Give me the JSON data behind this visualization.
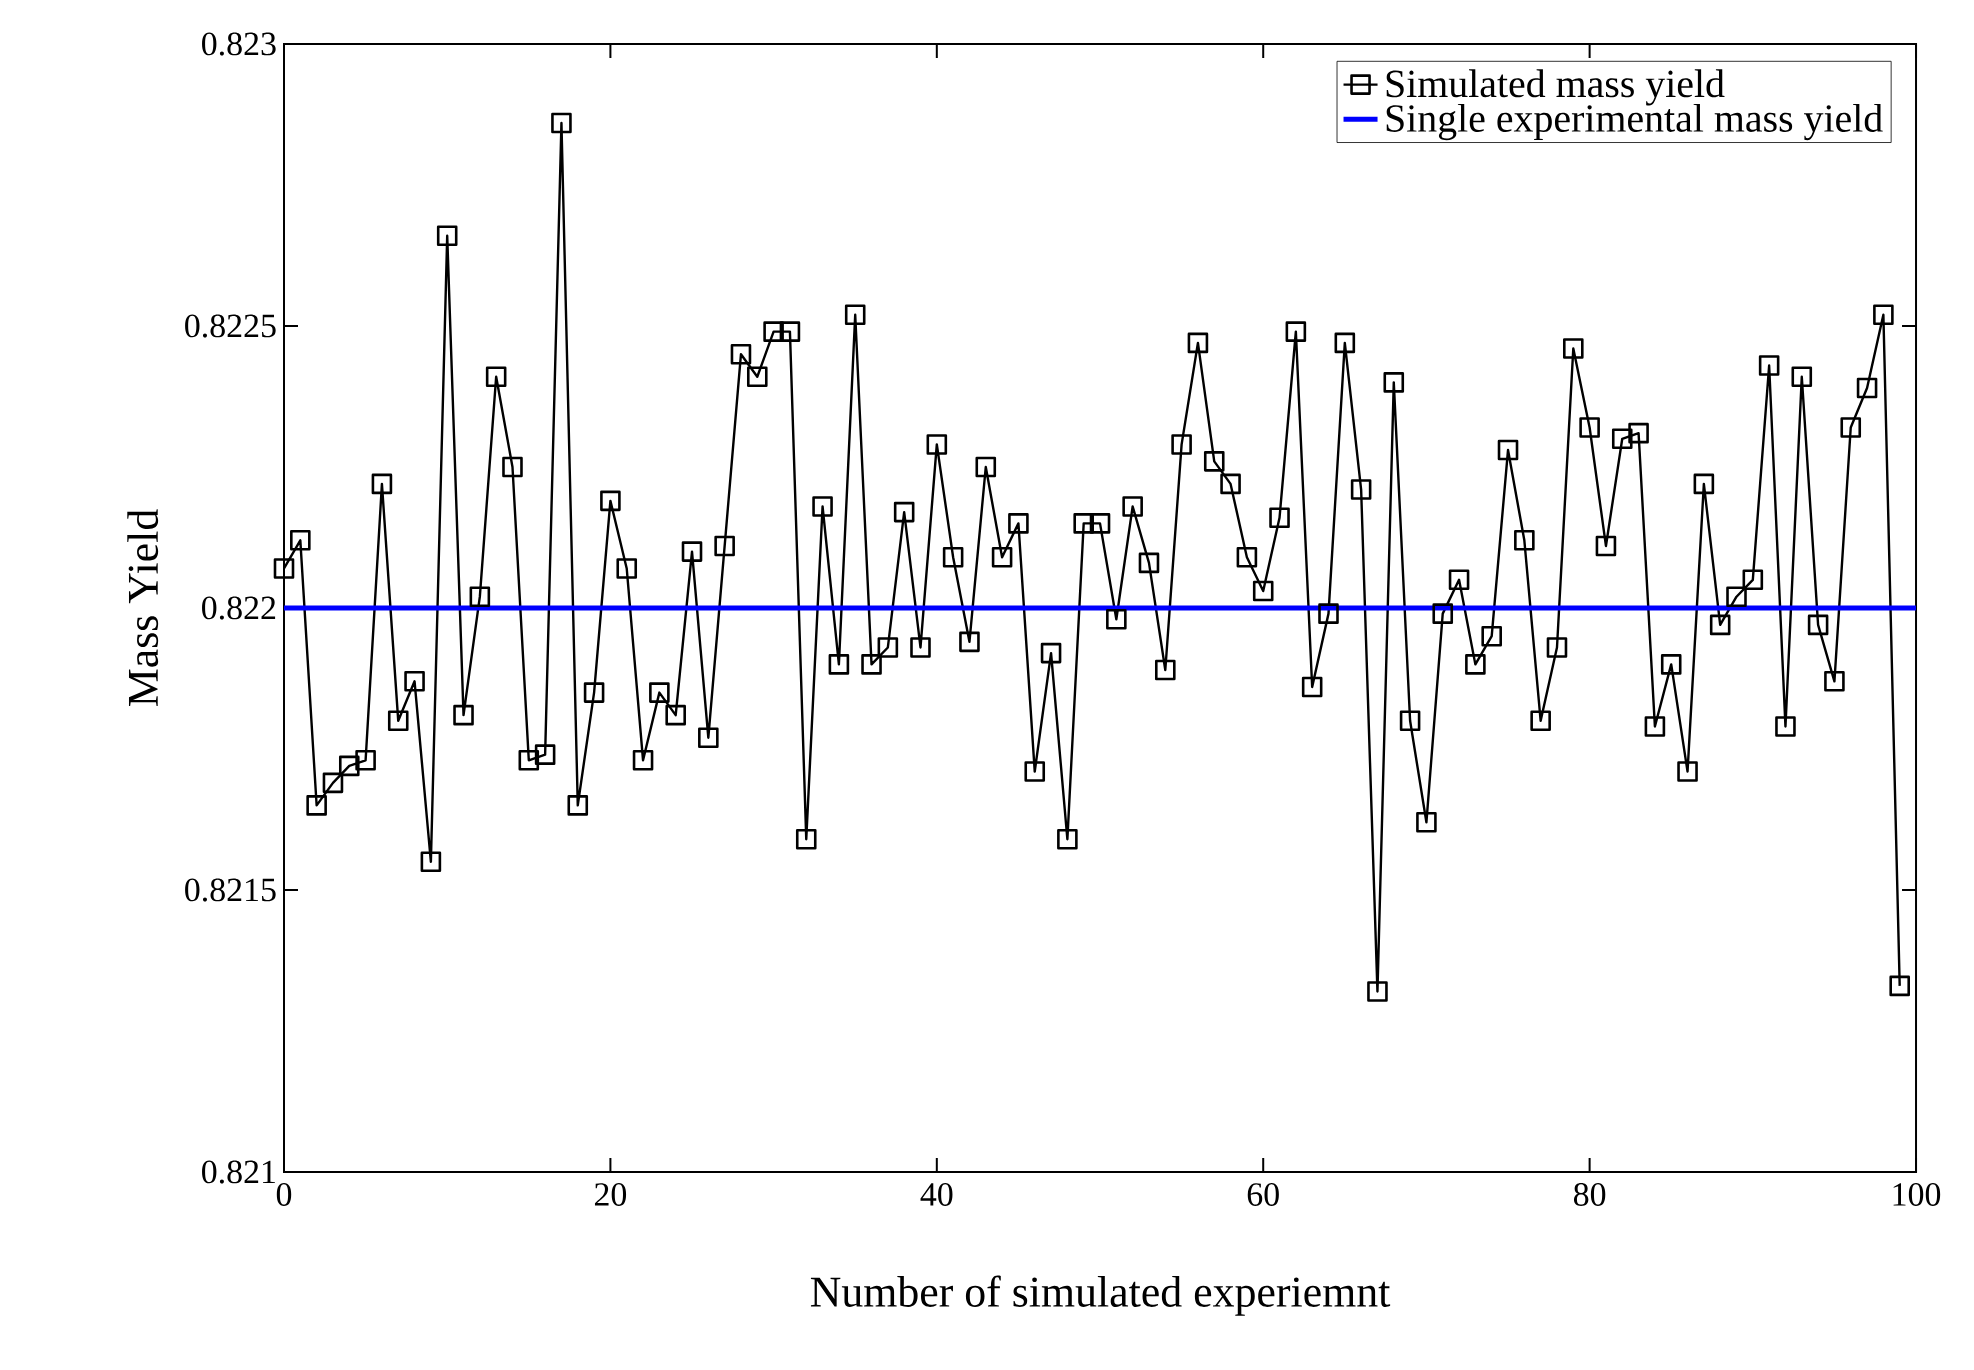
{
  "chart_data": {
    "type": "line",
    "xlabel": "Number of simulated experiemnt",
    "ylabel": "Mass Yield",
    "x": [
      0,
      1,
      2,
      3,
      4,
      5,
      6,
      7,
      8,
      9,
      10,
      11,
      12,
      13,
      14,
      15,
      16,
      17,
      18,
      19,
      20,
      21,
      22,
      23,
      24,
      25,
      26,
      27,
      28,
      29,
      30,
      31,
      32,
      33,
      34,
      35,
      36,
      37,
      38,
      39,
      40,
      41,
      42,
      43,
      44,
      45,
      46,
      47,
      48,
      49,
      50,
      51,
      52,
      53,
      54,
      55,
      56,
      57,
      58,
      59,
      60,
      61,
      62,
      63,
      64,
      65,
      66,
      67,
      68,
      69,
      70,
      71,
      72,
      73,
      74,
      75,
      76,
      77,
      78,
      79,
      80,
      81,
      82,
      83,
      84,
      85,
      86,
      87,
      88,
      89,
      90,
      91,
      92,
      93,
      94,
      95,
      96,
      97,
      98,
      99
    ],
    "series": [
      {
        "name": "Simulated mass yield",
        "color": "#000000",
        "marker": "square",
        "values": [
          0.82207,
          0.82212,
          0.82165,
          0.82169,
          0.82172,
          0.82173,
          0.82222,
          0.8218,
          0.82187,
          0.82155,
          0.82266,
          0.82181,
          0.82202,
          0.82241,
          0.82225,
          0.82173,
          0.82174,
          0.82286,
          0.82165,
          0.82185,
          0.82219,
          0.82207,
          0.82173,
          0.82185,
          0.82181,
          0.8221,
          0.82177,
          0.82211,
          0.82245,
          0.82241,
          0.82249,
          0.82249,
          0.82159,
          0.82218,
          0.8219,
          0.82252,
          0.8219,
          0.82193,
          0.82217,
          0.82193,
          0.82229,
          0.82209,
          0.82194,
          0.82225,
          0.82209,
          0.82215,
          0.82171,
          0.82192,
          0.82159,
          0.82215,
          0.82215,
          0.82198,
          0.82218,
          0.82208,
          0.82189,
          0.82229,
          0.82247,
          0.82226,
          0.82222,
          0.82209,
          0.82203,
          0.82216,
          0.82249,
          0.82186,
          0.82199,
          0.82247,
          0.82221,
          0.82132,
          0.8224,
          0.8218,
          0.82162,
          0.82199,
          0.82205,
          0.8219,
          0.82195,
          0.82228,
          0.82212,
          0.8218,
          0.82193,
          0.82246,
          0.82232,
          0.82211,
          0.8223,
          0.82231,
          0.82179,
          0.8219,
          0.82171,
          0.82222,
          0.82197,
          0.82202,
          0.82205,
          0.82243,
          0.82179,
          0.82241,
          0.82197,
          0.82187,
          0.82232,
          0.82239,
          0.82252,
          0.82133
        ]
      }
    ],
    "ref_lines": [
      {
        "axis": "y",
        "value": 0.822,
        "label": "Single experimental mass yield",
        "color": "#0000ff"
      }
    ],
    "xlim": [
      0,
      100
    ],
    "ylim": [
      0.821,
      0.823
    ],
    "xticks": [
      0,
      20,
      40,
      60,
      80,
      100
    ],
    "yticks": [
      0.821,
      0.8215,
      0.822,
      0.8225,
      0.823
    ],
    "grid": false,
    "legend": "top right"
  }
}
